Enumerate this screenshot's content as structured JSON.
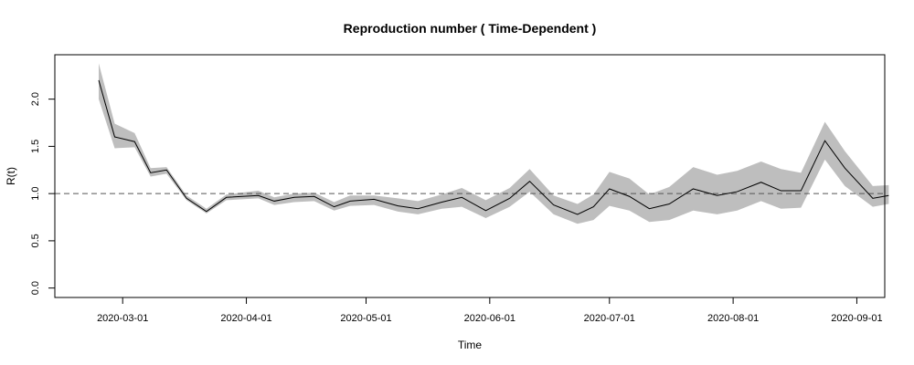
{
  "chart_data": {
    "type": "line",
    "title": "Reproduction number ( Time-Dependent )",
    "xlabel": "Time",
    "ylabel": "R(t)",
    "x_ticks": [
      "2020-03-01",
      "2020-04-01",
      "2020-05-01",
      "2020-06-01",
      "2020-07-01",
      "2020-08-01",
      "2020-09-01"
    ],
    "y_ticks": [
      "0.0",
      "0.5",
      "1.0",
      "1.5",
      "2.0"
    ],
    "xlim": [
      "2020-02-13",
      "2020-09-08"
    ],
    "ylim": [
      -0.1,
      2.47
    ],
    "reference_line": {
      "y": 1.0,
      "style": "dashed"
    },
    "series": [
      {
        "values": [
          {
            "x": "2020-02-24",
            "y": 2.2,
            "lower": 2.0,
            "upper": 2.38
          },
          {
            "x": "2020-02-28",
            "y": 1.6,
            "lower": 1.48,
            "upper": 1.74
          },
          {
            "x": "2020-03-04",
            "y": 1.55,
            "lower": 1.49,
            "upper": 1.64
          },
          {
            "x": "2020-03-08",
            "y": 1.22,
            "lower": 1.18,
            "upper": 1.27
          },
          {
            "x": "2020-03-12",
            "y": 1.25,
            "lower": 1.21,
            "upper": 1.28
          },
          {
            "x": "2020-03-17",
            "y": 0.95,
            "lower": 0.93,
            "upper": 0.98
          },
          {
            "x": "2020-03-22",
            "y": 0.81,
            "lower": 0.79,
            "upper": 0.84
          },
          {
            "x": "2020-03-27",
            "y": 0.96,
            "lower": 0.93,
            "upper": 0.99
          },
          {
            "x": "2020-04-04",
            "y": 0.98,
            "lower": 0.95,
            "upper": 1.03
          },
          {
            "x": "2020-04-08",
            "y": 0.92,
            "lower": 0.88,
            "upper": 0.96
          },
          {
            "x": "2020-04-13",
            "y": 0.96,
            "lower": 0.91,
            "upper": 1.0
          },
          {
            "x": "2020-04-18",
            "y": 0.97,
            "lower": 0.92,
            "upper": 1.01
          },
          {
            "x": "2020-04-23",
            "y": 0.86,
            "lower": 0.82,
            "upper": 0.91
          },
          {
            "x": "2020-04-27",
            "y": 0.92,
            "lower": 0.87,
            "upper": 0.98
          },
          {
            "x": "2020-05-03",
            "y": 0.94,
            "lower": 0.88,
            "upper": 0.98
          },
          {
            "x": "2020-05-09",
            "y": 0.87,
            "lower": 0.81,
            "upper": 0.95
          },
          {
            "x": "2020-05-14",
            "y": 0.84,
            "lower": 0.78,
            "upper": 0.92
          },
          {
            "x": "2020-05-20",
            "y": 0.91,
            "lower": 0.84,
            "upper": 0.99
          },
          {
            "x": "2020-05-25",
            "y": 0.96,
            "lower": 0.86,
            "upper": 1.06
          },
          {
            "x": "2020-05-31",
            "y": 0.82,
            "lower": 0.74,
            "upper": 0.93
          },
          {
            "x": "2020-06-06",
            "y": 0.95,
            "lower": 0.86,
            "upper": 1.06
          },
          {
            "x": "2020-06-11",
            "y": 1.13,
            "lower": 1.02,
            "upper": 1.26
          },
          {
            "x": "2020-06-17",
            "y": 0.88,
            "lower": 0.78,
            "upper": 0.98
          },
          {
            "x": "2020-06-23",
            "y": 0.78,
            "lower": 0.68,
            "upper": 0.89
          },
          {
            "x": "2020-06-27",
            "y": 0.86,
            "lower": 0.72,
            "upper": 0.99
          },
          {
            "x": "2020-07-01",
            "y": 1.05,
            "lower": 0.87,
            "upper": 1.23
          },
          {
            "x": "2020-07-06",
            "y": 0.97,
            "lower": 0.82,
            "upper": 1.16
          },
          {
            "x": "2020-07-11",
            "y": 0.84,
            "lower": 0.7,
            "upper": 0.99
          },
          {
            "x": "2020-07-16",
            "y": 0.89,
            "lower": 0.72,
            "upper": 1.07
          },
          {
            "x": "2020-07-22",
            "y": 1.05,
            "lower": 0.82,
            "upper": 1.28
          },
          {
            "x": "2020-07-28",
            "y": 0.98,
            "lower": 0.78,
            "upper": 1.2
          },
          {
            "x": "2020-08-02",
            "y": 1.02,
            "lower": 0.82,
            "upper": 1.24
          },
          {
            "x": "2020-08-08",
            "y": 1.12,
            "lower": 0.92,
            "upper": 1.34
          },
          {
            "x": "2020-08-13",
            "y": 1.03,
            "lower": 0.84,
            "upper": 1.26
          },
          {
            "x": "2020-08-18",
            "y": 1.03,
            "lower": 0.85,
            "upper": 1.22
          },
          {
            "x": "2020-08-24",
            "y": 1.56,
            "lower": 1.36,
            "upper": 1.76
          },
          {
            "x": "2020-08-29",
            "y": 1.27,
            "lower": 1.08,
            "upper": 1.45
          },
          {
            "x": "2020-09-05",
            "y": 0.95,
            "lower": 0.86,
            "upper": 1.08
          },
          {
            "x": "2020-09-09",
            "y": 0.98,
            "lower": 0.89,
            "upper": 1.09
          }
        ]
      }
    ],
    "grid": false,
    "colors": {
      "line": "#000000",
      "band": "#bebebe",
      "reference": "#555555",
      "frame": "#000000"
    }
  }
}
